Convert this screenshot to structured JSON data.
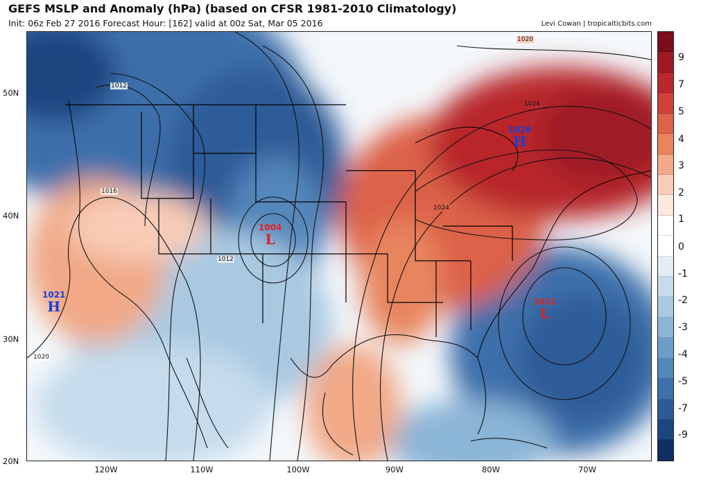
{
  "header": {
    "title": "GEFS MSLP and Anomaly (hPa) (based on CFSR 1981-2010 Climatology)",
    "subtitle": "Init: 06z Feb 27 2016   Forecast Hour: [162]   valid at 00z Sat, Mar 05 2016",
    "credit": "Levi Cowan | tropicalticbits.com"
  },
  "axes": {
    "lat_labels": [
      "50N",
      "40N",
      "30N",
      "20N"
    ],
    "lon_labels": [
      "120W",
      "110W",
      "100W",
      "90W",
      "80W",
      "70W"
    ]
  },
  "pressure_centers": [
    {
      "value": "1021",
      "type": "H",
      "color": "#1a3fd6"
    },
    {
      "value": "1004",
      "type": "L",
      "color": "#e02020"
    },
    {
      "value": "1026",
      "type": "H",
      "color": "#1a3fd6"
    },
    {
      "value": "1011",
      "type": "L",
      "color": "#e02020"
    }
  ],
  "isobar_labels": [
    "1020",
    "1012",
    "1016",
    "1012",
    "1024",
    "1020",
    "1024",
    "1020"
  ],
  "colorbar": {
    "labels": [
      "9",
      "7",
      "5",
      "4",
      "3",
      "2",
      "1",
      "0",
      "-1",
      "-2",
      "-3",
      "-4",
      "-5",
      "-7",
      "-9"
    ],
    "colors": [
      "#7a0d1e",
      "#9e1a26",
      "#b8282c",
      "#cd4239",
      "#dc6248",
      "#e8855e",
      "#f1a987",
      "#f8ccb6",
      "#fde8de",
      "#ffffff",
      "#ffffff",
      "#e2edf5",
      "#c6dcec",
      "#a9c9e1",
      "#8bb5d6",
      "#6d9ec9",
      "#5487bb",
      "#3e70ab",
      "#2d5b98",
      "#1d4580",
      "#0f2f63"
    ]
  }
}
